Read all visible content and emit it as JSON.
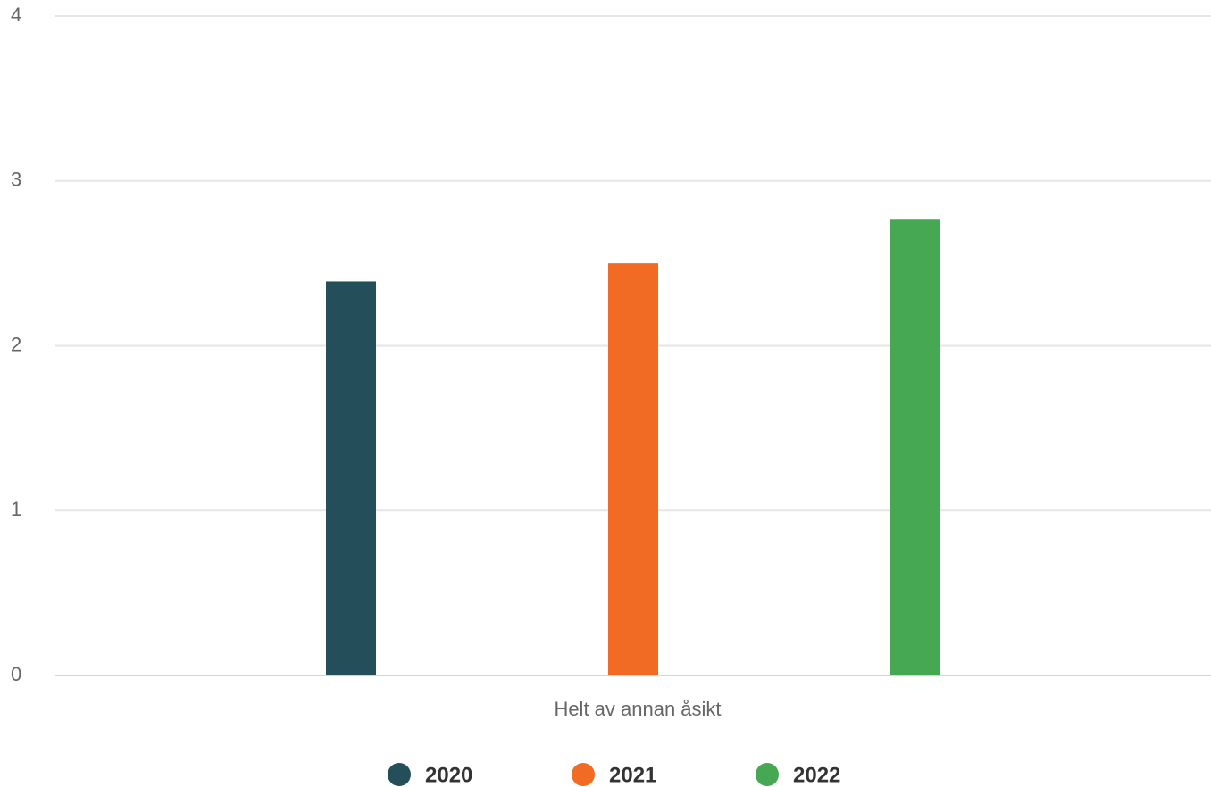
{
  "chart_data": {
    "type": "bar",
    "categories": [
      "Helt av annan åsikt"
    ],
    "series": [
      {
        "name": "2020",
        "color": "#234e5a",
        "values": [
          2.39
        ]
      },
      {
        "name": "2021",
        "color": "#f26b24",
        "values": [
          2.5
        ]
      },
      {
        "name": "2022",
        "color": "#47a854",
        "values": [
          2.77
        ]
      }
    ],
    "ylim": [
      0,
      4
    ],
    "yticks": [
      0,
      1,
      2,
      3,
      4
    ],
    "grid": true,
    "legend": "bottom"
  }
}
